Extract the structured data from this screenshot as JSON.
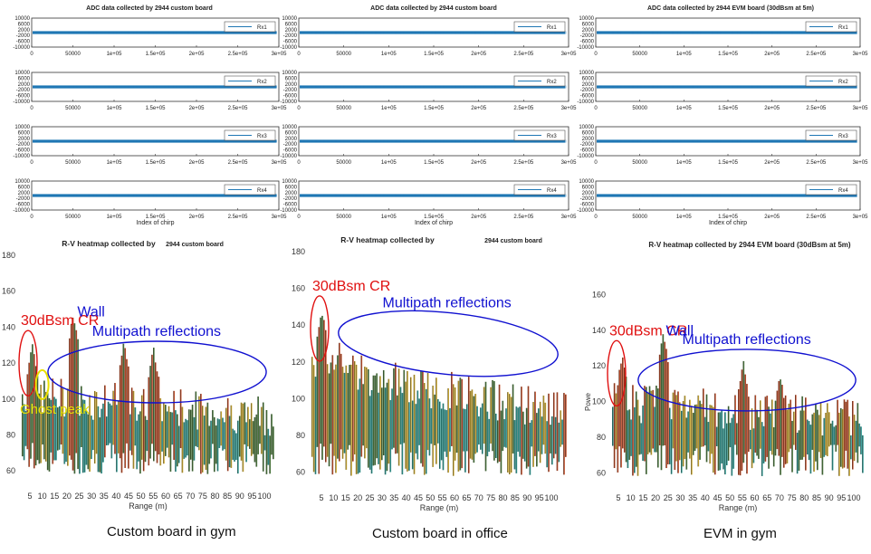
{
  "colors": {
    "adc_line": "#1f77b4",
    "heat_low": "#1a8f86",
    "heat_mid": "#c9a21c",
    "heat_high": "#b83a12",
    "annot_red": "#e01010",
    "annot_blue": "#1010d0",
    "annot_yellow": "#e8e000"
  },
  "chart_data": [
    {
      "type": "line",
      "title_prefix": "ADC data collected by",
      "title_suffix": "2944 custom board",
      "subplots": [
        {
          "legend": "Rx1",
          "ylim": [
            -10000,
            10000
          ],
          "xlim": [
            0,
            300000
          ],
          "value_level": 0
        },
        {
          "legend": "Rx2",
          "ylim": [
            -10000,
            10000
          ],
          "xlim": [
            0,
            300000
          ],
          "value_level": 0
        },
        {
          "legend": "Rx3",
          "ylim": [
            -10000,
            10000
          ],
          "xlim": [
            0,
            300000
          ],
          "value_level": 0
        },
        {
          "legend": "Rx4",
          "ylim": [
            -10000,
            10000
          ],
          "xlim": [
            0,
            300000
          ],
          "value_level": 0
        }
      ],
      "yticks": [
        "10000",
        "6000",
        "2000",
        "-2000",
        "-6000",
        "-10000"
      ],
      "xticks": [
        "0",
        "50000",
        "1e+05",
        "1.5e+05",
        "2e+05",
        "2.5e+05",
        "3e+05"
      ],
      "xlabel": "Index of chirp"
    },
    {
      "type": "line",
      "title_prefix": "ADC data collected by",
      "title_suffix": "2944 custom board",
      "subplots": [
        {
          "legend": "Rx1",
          "ylim": [
            -10000,
            10000
          ],
          "xlim": [
            0,
            300000
          ],
          "value_level": 0
        },
        {
          "legend": "Rx2",
          "ylim": [
            -10000,
            10000
          ],
          "xlim": [
            0,
            300000
          ],
          "value_level": 0
        },
        {
          "legend": "Rx3",
          "ylim": [
            -10000,
            10000
          ],
          "xlim": [
            0,
            300000
          ],
          "value_level": 0
        },
        {
          "legend": "Rx4",
          "ylim": [
            -10000,
            10000
          ],
          "xlim": [
            0,
            300000
          ],
          "value_level": 0
        }
      ],
      "yticks": [
        "10000",
        "6000",
        "2000",
        "-2000",
        "-6000",
        "-10000"
      ],
      "xticks": [
        "0",
        "50000",
        "1e+05",
        "1.5e+05",
        "2e+05",
        "2.5e+05",
        "3e+05"
      ],
      "xlabel": "Index of chirp"
    },
    {
      "type": "line",
      "title_prefix": "ADC data collected by 2944 EVM board (30dBsm at 5m)",
      "title_suffix": "",
      "subplots": [
        {
          "legend": "Rx1",
          "ylim": [
            -10000,
            10000
          ],
          "xlim": [
            0,
            300000
          ],
          "value_level": 0
        },
        {
          "legend": "Rx2",
          "ylim": [
            -10000,
            10000
          ],
          "xlim": [
            0,
            300000
          ],
          "value_level": 0
        },
        {
          "legend": "Rx3",
          "ylim": [
            -10000,
            10000
          ],
          "xlim": [
            0,
            300000
          ],
          "value_level": 0
        },
        {
          "legend": "Rx4",
          "ylim": [
            -10000,
            10000
          ],
          "xlim": [
            0,
            300000
          ],
          "value_level": 0
        }
      ],
      "yticks": [
        "10000",
        "6000",
        "2000",
        "-2000",
        "-6000",
        "-10000"
      ],
      "xticks": [
        "0",
        "50000",
        "1e+05",
        "1.5e+05",
        "2e+05",
        "2.5e+05",
        "3e+05"
      ],
      "xlabel": "Index of chirp"
    },
    {
      "type": "heatmap",
      "title_prefix": "R-V heatmap collected by",
      "title_suffix": "2944 custom board",
      "xlabel": "Range (m)",
      "ylabel": "",
      "xlim": [
        0,
        105
      ],
      "ylim": [
        50,
        180
      ],
      "yticks": [
        "180",
        "160",
        "140",
        "120",
        "100",
        "80",
        "60"
      ],
      "xticks": [
        "5",
        "10",
        "15",
        "20",
        "25",
        "30",
        "35",
        "40",
        "45",
        "50",
        "55",
        "60",
        "65",
        "70",
        "75",
        "80",
        "85",
        "90",
        "95",
        "100"
      ],
      "peaks": [
        {
          "x": 5,
          "y": 130
        },
        {
          "x": 22,
          "y": 147
        },
        {
          "x": 43,
          "y": 132
        },
        {
          "x": 55,
          "y": 128
        }
      ],
      "baseline_start": 103,
      "baseline_end": 90,
      "annotations": [
        {
          "text": "30dBsm CR",
          "color": "red"
        },
        {
          "text": "Wall",
          "color": "blue"
        },
        {
          "text": "Multipath reflections",
          "color": "blue"
        },
        {
          "text": "Ghost peak",
          "color": "yellow"
        }
      ]
    },
    {
      "type": "heatmap",
      "title_prefix": "R-V heatmap collected by",
      "title_suffix": "2944 custom board",
      "xlabel": "Range (m)",
      "ylabel": "",
      "xlim": [
        0,
        105
      ],
      "ylim": [
        50,
        180
      ],
      "yticks": [
        "180",
        "160",
        "140",
        "120",
        "100",
        "80",
        "60"
      ],
      "xticks": [
        "5",
        "10",
        "15",
        "20",
        "25",
        "30",
        "35",
        "40",
        "45",
        "50",
        "55",
        "60",
        "65",
        "70",
        "75",
        "80",
        "85",
        "90",
        "95",
        "100"
      ],
      "peaks": [
        {
          "x": 5,
          "y": 148
        },
        {
          "x": 12,
          "y": 130
        }
      ],
      "baseline_start": 118,
      "baseline_end": 92,
      "annotations": [
        {
          "text": "30dBsm CR",
          "color": "red"
        },
        {
          "text": "Multipath reflections",
          "color": "blue"
        }
      ]
    },
    {
      "type": "heatmap",
      "title_prefix": "R-V heatmap collected by 2944 EVM board (30dBsm at 5m)",
      "title_suffix": "",
      "xlabel": "Range (m)",
      "ylabel": "Powe",
      "xlim": [
        0,
        105
      ],
      "ylim": [
        50,
        180
      ],
      "yticks": [
        "160",
        "140",
        "120",
        "100",
        "80",
        "60"
      ],
      "xticks": [
        "5",
        "10",
        "15",
        "20",
        "25",
        "30",
        "35",
        "40",
        "45",
        "50",
        "55",
        "60",
        "65",
        "70",
        "75",
        "80",
        "85",
        "90",
        "95",
        "100"
      ],
      "peaks": [
        {
          "x": 5,
          "y": 126
        },
        {
          "x": 22,
          "y": 138
        },
        {
          "x": 55,
          "y": 122
        },
        {
          "x": 70,
          "y": 116
        }
      ],
      "baseline_start": 100,
      "baseline_end": 90,
      "annotations": [
        {
          "text": "30dBsm CR",
          "color": "red"
        },
        {
          "text": "Wall",
          "color": "blue"
        },
        {
          "text": "Multipath reflections",
          "color": "blue"
        }
      ]
    }
  ],
  "captions": [
    "Custom board in gym",
    "Custom board in office",
    "EVM in gym"
  ]
}
